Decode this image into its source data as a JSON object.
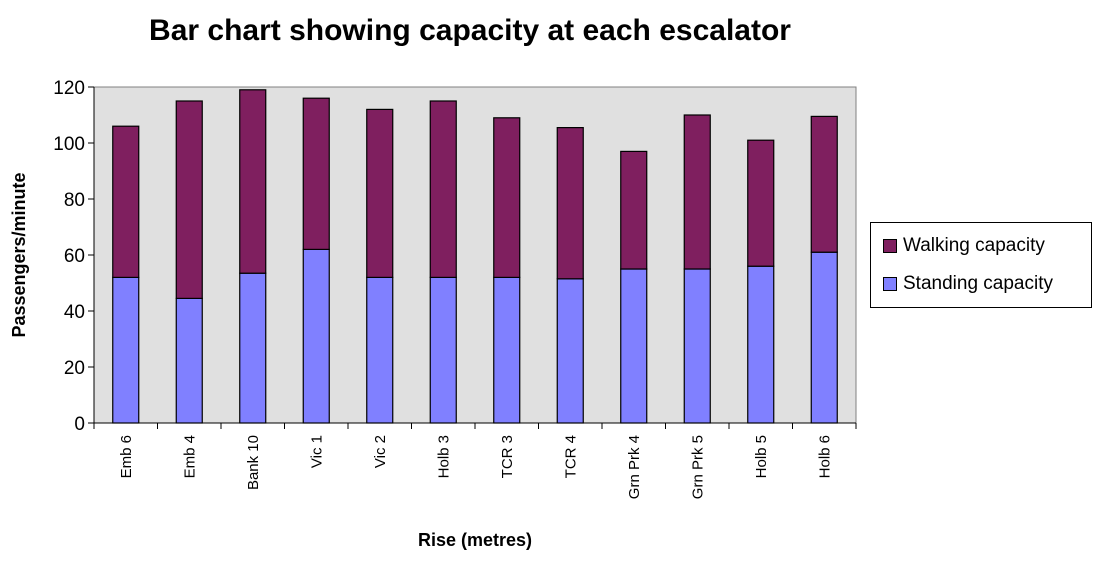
{
  "colors": {
    "walking": "#7f1f5f",
    "standing": "#8080ff",
    "plot_bg": "#e0e0e0"
  },
  "chart_data": {
    "type": "bar",
    "stacked": true,
    "title": "Bar chart showing capacity at each escalator",
    "xlabel": "Rise (metres)",
    "ylabel": "Passengers/minute",
    "ylim": [
      0,
      120
    ],
    "yticks": [
      0,
      20,
      40,
      60,
      80,
      100,
      120
    ],
    "grid": false,
    "legend_position": "right",
    "categories": [
      "Emb 6",
      "Emb 4",
      "Bank 10",
      "Vic 1",
      "Vic 2",
      "Holb 3",
      "TCR 3",
      "TCR 4",
      "Grn Prk 4",
      "Grn Prk 5",
      "Holb 5",
      "Holb 6"
    ],
    "series": [
      {
        "name": "Standing capacity",
        "values": [
          52,
          44.5,
          53.5,
          62,
          52,
          52,
          52,
          51.5,
          55,
          55,
          56,
          61
        ]
      },
      {
        "name": "Walking capacity",
        "values": [
          54,
          70.5,
          65.5,
          54,
          60,
          63,
          57,
          54,
          42,
          55,
          45,
          48.5
        ]
      }
    ]
  }
}
